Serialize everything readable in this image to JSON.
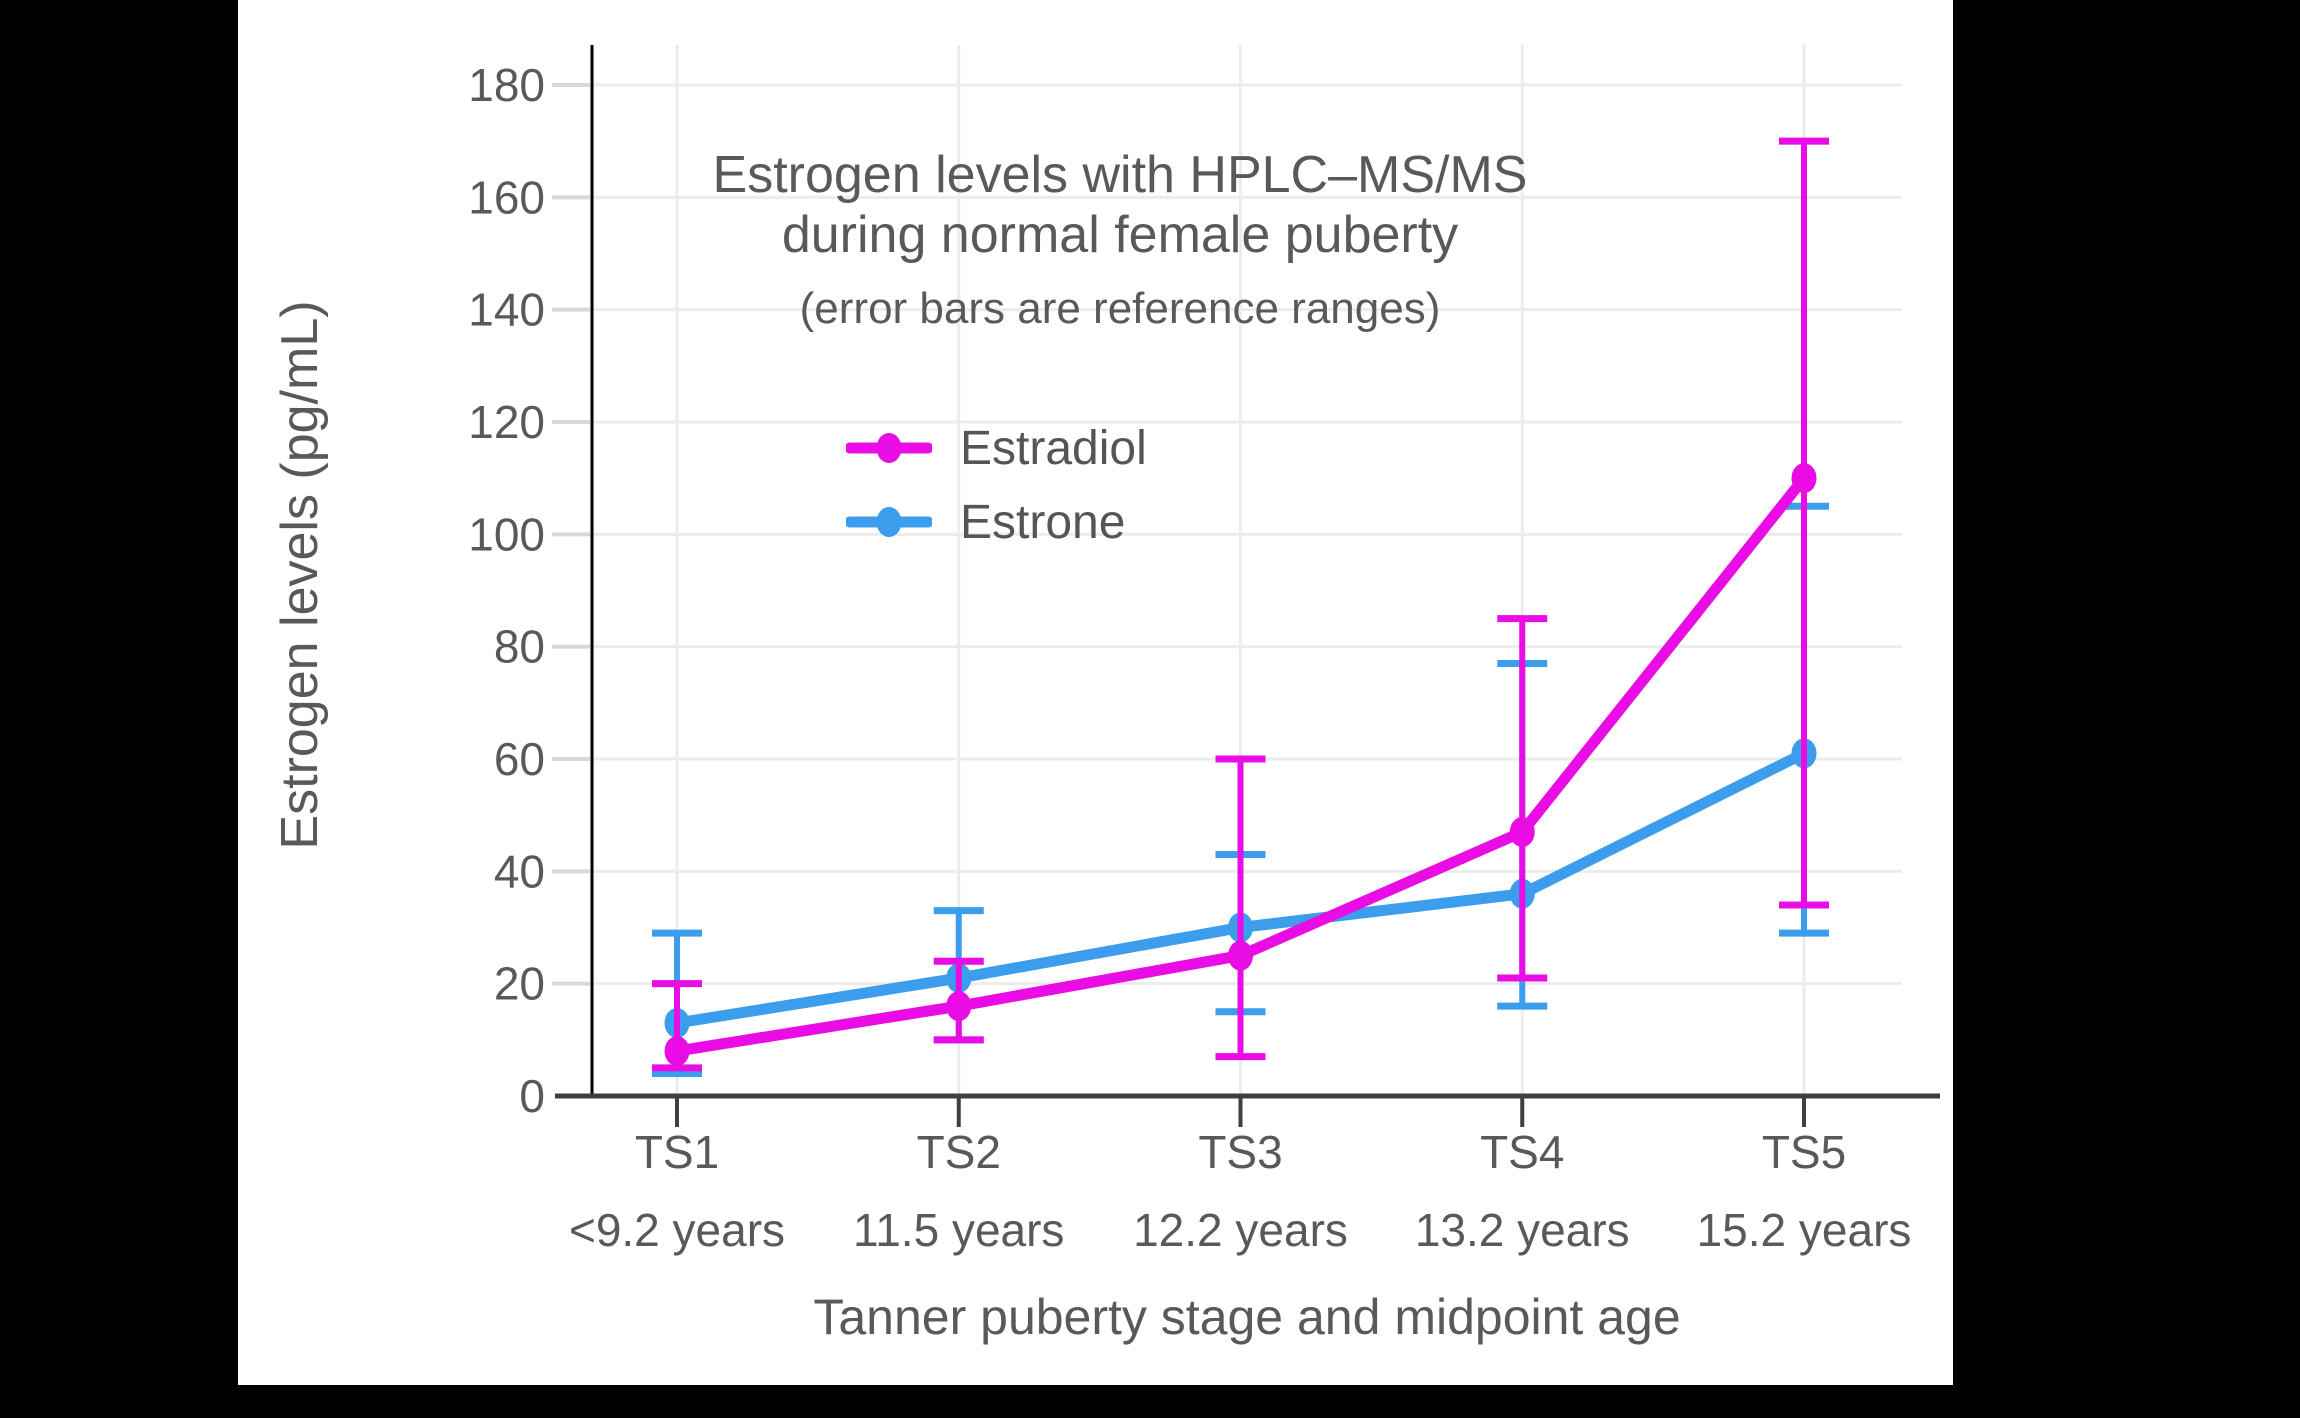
{
  "chart_data": {
    "type": "line",
    "title": "Estrogen levels with HPLC–MS/MS",
    "title_line2": "during normal female puberty",
    "subtitle": "(error bars are reference ranges)",
    "xlabel": "Tanner puberty stage and midpoint age",
    "ylabel": "Estrogen levels (pg/mL)",
    "ylim": [
      0,
      180
    ],
    "yticks": [
      0,
      20,
      40,
      60,
      80,
      100,
      120,
      140,
      160,
      180
    ],
    "grid": true,
    "legend_position": "upper-center-inside",
    "categories": [
      {
        "stage": "TS1",
        "age": "<9.2 years"
      },
      {
        "stage": "TS2",
        "age": "11.5 years"
      },
      {
        "stage": "TS3",
        "age": "12.2 years"
      },
      {
        "stage": "TS4",
        "age": "13.2 years"
      },
      {
        "stage": "TS5",
        "age": "15.2 years"
      }
    ],
    "series": [
      {
        "name": "Estradiol",
        "color": "#E90CE4",
        "values": [
          8,
          16,
          25,
          47,
          110
        ],
        "range_low": [
          5,
          10,
          7,
          21,
          34
        ],
        "range_high": [
          20,
          24,
          60,
          85,
          170
        ]
      },
      {
        "name": "Estrone",
        "color": "#3B9DEC",
        "values": [
          13,
          21,
          30,
          36,
          61
        ],
        "range_low": [
          4,
          10,
          15,
          16,
          29
        ],
        "range_high": [
          29,
          33,
          43,
          77,
          105
        ]
      }
    ],
    "colors": {
      "background": "#000000",
      "card": "#FFFFFF",
      "gridline": "#ECECEC",
      "tick_stub": "#D8D8D8",
      "x_axis": "#3F3F3F",
      "y_axis": "#000000",
      "text": "#595959"
    }
  }
}
